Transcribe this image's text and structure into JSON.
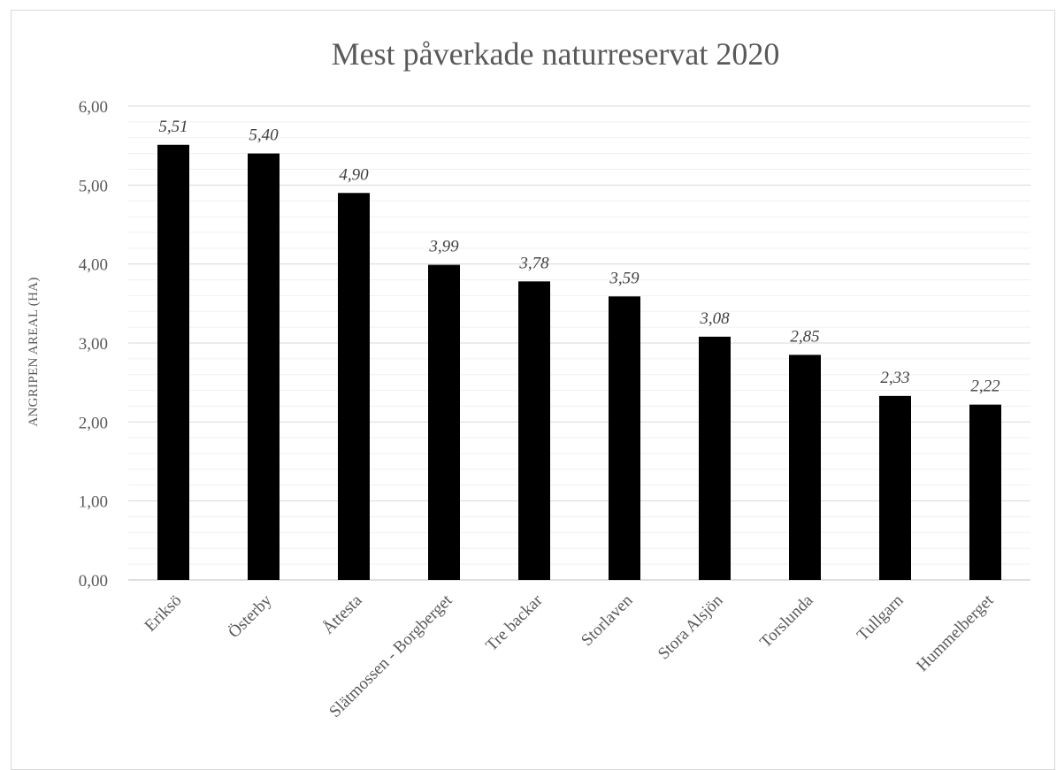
{
  "chart_data": {
    "type": "bar",
    "title": "Mest påverkade naturreservat 2020",
    "xlabel": "",
    "ylabel": "ANGRIPEN AREAL (HA)",
    "ylim": [
      0,
      6
    ],
    "grid": true,
    "legend": "none",
    "bar_color": "#000000",
    "y_ticks": [
      "0,00",
      "1,00",
      "2,00",
      "3,00",
      "4,00",
      "5,00",
      "6,00"
    ],
    "categories": [
      "Eriksö",
      "Österby",
      "Åttesta",
      "Slätmossen - Borgberget",
      "Tre backar",
      "Storlaven",
      "Stora Alsjön",
      "Torslunda",
      "Tullgarn",
      "Hummelberget"
    ],
    "values": [
      5.51,
      5.4,
      4.9,
      3.99,
      3.78,
      3.59,
      3.08,
      2.85,
      2.33,
      2.22
    ],
    "data_labels": [
      "5,51",
      "5,40",
      "4,90",
      "3,99",
      "3,78",
      "3,59",
      "3,08",
      "2,85",
      "2,33",
      "2,22"
    ]
  }
}
